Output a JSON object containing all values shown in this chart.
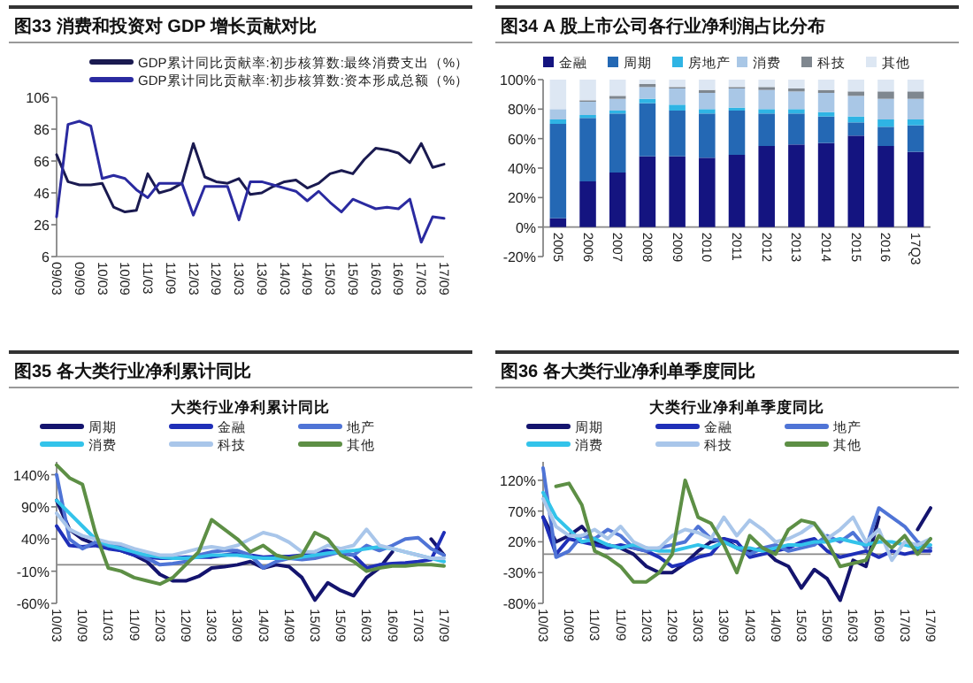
{
  "chart_data": [
    {
      "type": "line",
      "title": "图33 消费和投资对 GDP 增长贡献对比",
      "legend": "top",
      "categories": [
        "09/03",
        null,
        "09/09",
        null,
        "10/03",
        null,
        "10/09",
        null,
        "11/03",
        null,
        "11/09",
        null,
        "12/03",
        null,
        "12/09",
        null,
        "13/03",
        null,
        "13/09",
        null,
        "14/03",
        null,
        "14/09",
        null,
        "15/03",
        null,
        "15/09",
        null,
        "16/03",
        null,
        "16/09",
        null,
        "17/03",
        null,
        "17/09"
      ],
      "ylim": [
        6,
        106
      ],
      "yticks": [
        6,
        26,
        46,
        66,
        86,
        106
      ],
      "series": [
        {
          "name": "GDP累计同比贡献率:初步核算数:最终消费支出（%）",
          "color": "#1a1a50",
          "values": [
            70,
            53,
            51,
            51,
            52,
            37,
            34,
            35,
            58,
            46,
            48,
            52,
            77,
            56,
            53,
            52,
            55,
            45,
            46,
            50,
            53,
            54,
            49,
            52,
            58,
            60,
            58,
            67,
            74,
            73,
            71,
            65,
            77,
            62,
            64
          ]
        },
        {
          "name": "GDP累计同比贡献率:初步核算数:资本形成总额（%）",
          "color": "#2a2aa0",
          "values": [
            31,
            89,
            91,
            88,
            55,
            57,
            55,
            48,
            43,
            52,
            52,
            52,
            32,
            50,
            50,
            50,
            29,
            53,
            53,
            51,
            49,
            47,
            41,
            47,
            40,
            34,
            42,
            39,
            36,
            37,
            36,
            42,
            15,
            31,
            30
          ]
        }
      ]
    },
    {
      "type": "bar",
      "stacked": true,
      "title": "图34 A 股上市公司各行业净利润占比分布",
      "legend": "top",
      "categories": [
        "2005",
        "2006",
        "2007",
        "2008",
        "2009",
        "2010",
        "2011",
        "2012",
        "2013",
        "2014",
        "2015",
        "2016",
        "17Q3"
      ],
      "ylim": [
        -20,
        100
      ],
      "yticks": [
        {
          "value": -20,
          "label": "-20%"
        },
        {
          "value": 0,
          "label": "0%"
        },
        {
          "value": 20,
          "label": "20%"
        },
        {
          "value": 40,
          "label": "40%"
        },
        {
          "value": 60,
          "label": "60%"
        },
        {
          "value": 80,
          "label": "80%"
        },
        {
          "value": 100,
          "label": "100%"
        }
      ],
      "series": [
        {
          "name": "金融",
          "color": "#141480",
          "values": [
            6,
            31,
            37,
            48,
            48,
            47,
            49,
            55,
            56,
            57,
            62,
            55,
            51
          ]
        },
        {
          "name": "周期",
          "color": "#2468b4",
          "values": [
            64,
            43,
            40,
            36,
            31,
            30,
            30,
            22,
            21,
            18,
            9,
            13,
            18
          ]
        },
        {
          "name": "房地产",
          "color": "#2fb4e4",
          "values": [
            3,
            2,
            2,
            3,
            4,
            3,
            2,
            3,
            3,
            3,
            4,
            5,
            4
          ]
        },
        {
          "name": "消费",
          "color": "#a9c7e6",
          "values": [
            7,
            9,
            8,
            8,
            11,
            11,
            13,
            13,
            12,
            13,
            14,
            14,
            14
          ]
        },
        {
          "name": "科技",
          "color": "#7f878f",
          "values": [
            0,
            1,
            2,
            2,
            1,
            2,
            1,
            2,
            2,
            2,
            3,
            5,
            5
          ]
        },
        {
          "name": "其他",
          "color": "#dde7f3",
          "values": [
            20,
            14,
            11,
            3,
            5,
            7,
            5,
            5,
            6,
            7,
            8,
            8,
            8
          ]
        }
      ]
    },
    {
      "type": "line",
      "title": "图35 各大类行业净利累计同比",
      "subtitle": "大类行业净利累计同比",
      "legend": "top",
      "categories": [
        "10/03",
        null,
        "10/09",
        null,
        "11/03",
        null,
        "11/09",
        null,
        "12/03",
        null,
        "12/09",
        null,
        "13/03",
        null,
        "13/09",
        null,
        "14/03",
        null,
        "14/09",
        null,
        "15/03",
        null,
        "15/09",
        null,
        "16/03",
        null,
        "16/09",
        null,
        "17/03",
        null,
        "17/09"
      ],
      "ylim": [
        -60,
        160
      ],
      "yticks": [
        {
          "value": -60,
          "label": "-60%"
        },
        {
          "value": -10,
          "label": "-10%"
        },
        {
          "value": 40,
          "label": "40%"
        },
        {
          "value": 90,
          "label": "90%"
        },
        {
          "value": 140,
          "label": "140%"
        }
      ],
      "series": [
        {
          "name": "周期",
          "color": "#14146e",
          "values": [
            100,
            55,
            40,
            32,
            28,
            22,
            15,
            5,
            -15,
            -25,
            -25,
            -18,
            -5,
            -3,
            0,
            5,
            -5,
            0,
            -3,
            -20,
            -55,
            -28,
            -40,
            -48,
            -20,
            -5,
            20,
            null,
            null,
            40,
            15
          ]
        },
        {
          "name": "金融",
          "color": "#1f2fb8",
          "values": [
            60,
            30,
            28,
            30,
            25,
            22,
            15,
            12,
            10,
            10,
            12,
            12,
            12,
            15,
            18,
            15,
            12,
            13,
            13,
            15,
            20,
            22,
            18,
            15,
            -5,
            0,
            2,
            3,
            5,
            8,
            50
          ]
        },
        {
          "name": "地产",
          "color": "#4f74d6",
          "values": [
            140,
            40,
            25,
            35,
            30,
            28,
            20,
            10,
            0,
            2,
            5,
            15,
            20,
            22,
            22,
            15,
            -5,
            5,
            10,
            8,
            10,
            15,
            20,
            15,
            30,
            22,
            30,
            40,
            42,
            25,
            15
          ]
        },
        {
          "name": "消费",
          "color": "#33c3ea",
          "values": [
            100,
            80,
            60,
            40,
            30,
            25,
            20,
            15,
            12,
            10,
            10,
            12,
            15,
            15,
            15,
            12,
            10,
            10,
            10,
            12,
            15,
            18,
            20,
            22,
            25,
            28,
            25,
            20,
            15,
            10,
            5
          ]
        },
        {
          "name": "科技",
          "color": "#a9c6ea",
          "values": [
            80,
            55,
            45,
            40,
            35,
            32,
            25,
            20,
            15,
            15,
            20,
            25,
            28,
            25,
            30,
            40,
            50,
            45,
            35,
            20,
            20,
            30,
            25,
            30,
            55,
            30,
            25,
            20,
            15,
            10,
            10
          ]
        },
        {
          "name": "其他",
          "color": "#5d8f45",
          "values": [
            155,
            135,
            125,
            50,
            -5,
            -10,
            -20,
            -25,
            -30,
            -20,
            0,
            20,
            70,
            55,
            40,
            20,
            30,
            15,
            10,
            15,
            50,
            40,
            15,
            5,
            -10,
            -5,
            -2,
            -2,
            0,
            0,
            -2
          ]
        }
      ]
    },
    {
      "type": "line",
      "title": "图36 各大类行业净利单季度同比",
      "subtitle": "大类行业净利单季度同比",
      "legend": "top",
      "categories": [
        "10/03",
        null,
        "10/09",
        null,
        "11/03",
        null,
        "11/09",
        null,
        "12/03",
        null,
        "12/09",
        null,
        "13/03",
        null,
        "13/09",
        null,
        "14/03",
        null,
        "14/09",
        null,
        "15/03",
        null,
        "15/09",
        null,
        "16/03",
        null,
        "16/09",
        null,
        "17/03",
        null,
        "17/09"
      ],
      "ylim": [
        -80,
        150
      ],
      "yticks": [
        {
          "value": -80,
          "label": "-80%"
        },
        {
          "value": -30,
          "label": "-30%"
        },
        {
          "value": 20,
          "label": "20%"
        },
        {
          "value": 70,
          "label": "70%"
        },
        {
          "value": 120,
          "label": "120%"
        }
      ],
      "series": [
        {
          "name": "周期",
          "color": "#14146e",
          "values": [
            60,
            20,
            30,
            45,
            20,
            15,
            10,
            0,
            -20,
            -30,
            -30,
            -15,
            5,
            20,
            25,
            10,
            5,
            10,
            -10,
            -20,
            -55,
            -25,
            -40,
            -75,
            -10,
            -20,
            60,
            null,
            null,
            40,
            75
          ]
        },
        {
          "name": "金融",
          "color": "#1f2fb8",
          "values": [
            60,
            0,
            25,
            20,
            15,
            10,
            15,
            10,
            5,
            -5,
            -20,
            -15,
            -5,
            0,
            25,
            20,
            -5,
            0,
            5,
            10,
            20,
            25,
            5,
            -5,
            0,
            5,
            -5,
            5,
            0,
            5,
            5
          ]
        },
        {
          "name": "地产",
          "color": "#4f74d6",
          "values": [
            140,
            -5,
            5,
            30,
            25,
            40,
            30,
            10,
            5,
            10,
            15,
            20,
            45,
            25,
            20,
            10,
            0,
            10,
            15,
            5,
            10,
            15,
            30,
            20,
            35,
            10,
            75,
            60,
            45,
            20,
            10
          ]
        },
        {
          "name": "消费",
          "color": "#33c3ea",
          "values": [
            100,
            60,
            40,
            20,
            25,
            15,
            10,
            15,
            10,
            5,
            5,
            10,
            15,
            10,
            20,
            10,
            10,
            5,
            10,
            15,
            15,
            20,
            20,
            25,
            20,
            15,
            20,
            20,
            15,
            10,
            15
          ]
        },
        {
          "name": "科技",
          "color": "#a9c6ea",
          "values": [
            90,
            45,
            30,
            30,
            40,
            25,
            45,
            20,
            10,
            10,
            30,
            40,
            35,
            25,
            60,
            30,
            55,
            40,
            20,
            25,
            35,
            50,
            25,
            40,
            60,
            20,
            40,
            -10,
            20,
            15,
            25
          ]
        },
        {
          "name": "其他",
          "color": "#5d8f45",
          "values": [
            null,
            110,
            115,
            80,
            5,
            -5,
            -20,
            -45,
            -45,
            -30,
            0,
            120,
            60,
            50,
            15,
            -30,
            30,
            10,
            0,
            40,
            55,
            50,
            20,
            -20,
            -15,
            -10,
            30,
            10,
            30,
            0,
            25
          ]
        }
      ]
    }
  ]
}
